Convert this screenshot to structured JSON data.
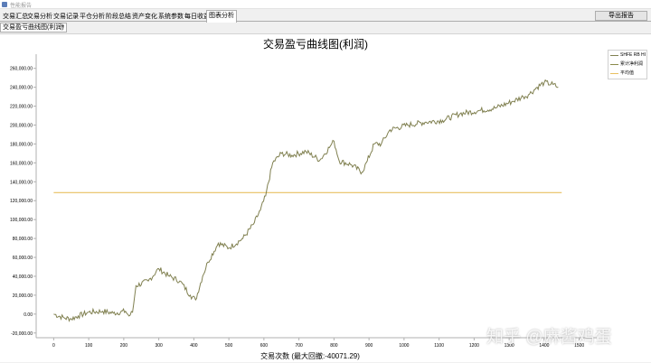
{
  "window": {
    "title": "性能报告"
  },
  "tabs": [
    {
      "label": "交易汇总"
    },
    {
      "label": "交易分析"
    },
    {
      "label": "交易记录"
    },
    {
      "label": "平仓分析"
    },
    {
      "label": "阶段总结"
    },
    {
      "label": "资产变化"
    },
    {
      "label": "系统参数"
    },
    {
      "label": "每日收益"
    },
    {
      "label": "图表分析",
      "active": true
    }
  ],
  "toolbar": {
    "export_label": "导出报告"
  },
  "chart_selector": {
    "value": "交易盈亏曲线图(利润)"
  },
  "watermark": "知乎 @麻酱鸡蛋",
  "colors": {
    "series": "#808050",
    "cumulative": "#8a8a4a",
    "average": "#e8c060",
    "axis": "#b0b0b0"
  },
  "chart_data": {
    "type": "line",
    "title": "交易盈亏曲线图(利润)",
    "xlabel": "交易次数 (最大回撤:-40071.29)",
    "ylabel": "",
    "xlim": [
      -50,
      1550
    ],
    "ylim": [
      -25000,
      275000
    ],
    "x_ticks": [
      0,
      100,
      200,
      300,
      400,
      500,
      600,
      700,
      800,
      900,
      1000,
      1100,
      1200,
      1300,
      1400,
      1500
    ],
    "y_ticks": [
      -20000,
      0,
      20000,
      40000,
      60000,
      80000,
      100000,
      120000,
      140000,
      160000,
      180000,
      200000,
      220000,
      240000,
      260000
    ],
    "y_tick_labels": [
      "-20,000.00",
      "0.00",
      "20,000.00",
      "40,000.00",
      "60,000.00",
      "80,000.00",
      "100,000.00",
      "120,000.00",
      "140,000.00",
      "160,000.00",
      "180,000.00",
      "200,000.00",
      "220,000.00",
      "240,000.00",
      "260,000.00"
    ],
    "legend_placement": "top-right",
    "legend": [
      "SHFE RB HI",
      "累计净利润",
      "平均值"
    ],
    "series": [
      {
        "name": "累计净利润",
        "x": [
          0,
          30,
          50,
          70,
          100,
          140,
          170,
          205,
          215,
          225,
          235,
          270,
          300,
          330,
          360,
          390,
          405,
          425,
          440,
          470,
          500,
          540,
          570,
          590,
          605,
          625,
          650,
          680,
          720,
          760,
          790,
          800,
          815,
          850,
          880,
          895,
          915,
          935,
          960,
          1010,
          1060,
          1110,
          1160,
          1210,
          1260,
          1310,
          1340,
          1355,
          1380,
          1400,
          1425,
          1440
        ],
        "values": [
          0,
          -4000,
          -5000,
          -2000,
          2000,
          3000,
          1000,
          3000,
          -2000,
          2000,
          30000,
          35000,
          48000,
          40000,
          35000,
          20000,
          15000,
          40000,
          55000,
          75000,
          70000,
          80000,
          95000,
          110000,
          125000,
          160000,
          170000,
          168000,
          172000,
          163000,
          178000,
          183000,
          162000,
          158000,
          150000,
          162000,
          180000,
          180000,
          195000,
          200000,
          203000,
          205000,
          212000,
          215000,
          218000,
          225000,
          230000,
          232000,
          240000,
          245000,
          243000,
          240000
        ]
      },
      {
        "name": "平均值",
        "x": [
          0,
          1450
        ],
        "values": [
          128500,
          128500
        ]
      }
    ]
  }
}
